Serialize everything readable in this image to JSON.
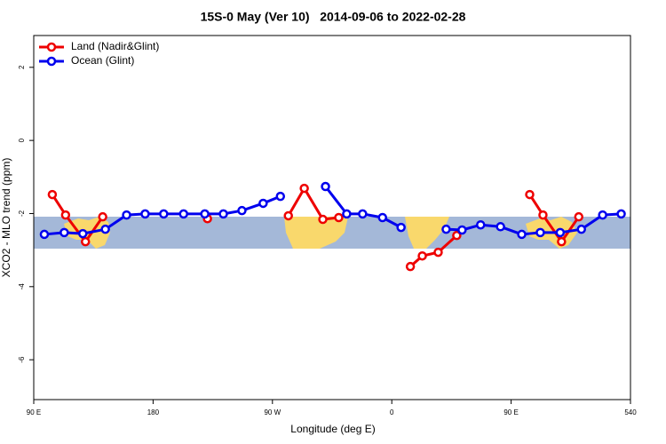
{
  "chart_data": {
    "type": "line",
    "title": "15S-0 May (Ver 10)   2014-09-06 to 2022-02-28",
    "xlabel": "Longitude (deg E)",
    "ylabel": "XCO2 - MLO trend (ppm)",
    "xlim": [
      90,
      540
    ],
    "ylim": [
      -7.09,
      2.87
    ],
    "xticks": [
      {
        "value": 90,
        "label": "90 E"
      },
      180,
      {
        "value": 270,
        "label": "90 W"
      },
      {
        "value": 360,
        "label": "0"
      },
      {
        "value": 450,
        "label": "90 E"
      },
      540
    ],
    "yticks": [
      2,
      0,
      -2,
      -4,
      -6
    ],
    "legend": "top-left",
    "series": [
      {
        "name": "Land (Nadir&Glint)",
        "color": "#ee0000",
        "x": [
          104,
          114,
          129,
          142,
          null,
          221,
          null,
          282,
          294,
          308,
          320,
          null,
          374,
          383,
          395,
          409,
          null,
          464,
          474,
          488,
          501
        ],
        "values": [
          -1.48,
          -2.04,
          -2.77,
          -2.09,
          null,
          -2.14,
          null,
          -2.06,
          -1.31,
          -2.16,
          -2.11,
          null,
          -3.45,
          -3.16,
          -3.06,
          -2.6,
          null,
          -1.48,
          -2.04,
          -2.77,
          -2.09
        ]
      },
      {
        "name": "Ocean (Glint)",
        "color": "#0000ee",
        "x": [
          98,
          113,
          127,
          144,
          160,
          174,
          188,
          203,
          219,
          233,
          247,
          263,
          276,
          null,
          310,
          326,
          338,
          353,
          367,
          null,
          401,
          413,
          427,
          442,
          458,
          472,
          487,
          503,
          519,
          533
        ],
        "values": [
          -2.57,
          -2.52,
          -2.55,
          -2.43,
          -2.04,
          -2.01,
          -2.01,
          -2.01,
          -2.01,
          -2.01,
          -1.92,
          -1.72,
          -1.53,
          null,
          -1.26,
          -2.01,
          -2.01,
          -2.11,
          -2.38,
          null,
          -2.43,
          -2.45,
          -2.31,
          -2.36,
          -2.57,
          -2.52,
          -2.52,
          -2.43,
          -2.04,
          -2.01
        ]
      }
    ]
  }
}
